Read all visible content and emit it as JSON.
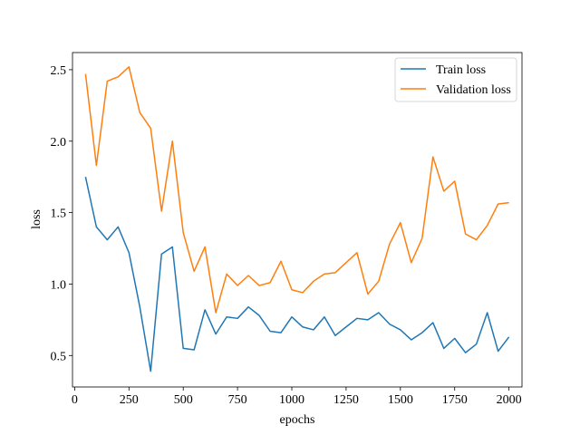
{
  "chart_data": {
    "type": "line",
    "xlabel": "epochs",
    "ylabel": "loss",
    "xlim": [
      -10,
      2060
    ],
    "ylim": [
      0.28,
      2.62
    ],
    "xticks": [
      0,
      250,
      500,
      750,
      1000,
      1250,
      1500,
      1750,
      2000
    ],
    "yticks": [
      0.5,
      1.0,
      1.5,
      2.0,
      2.5
    ],
    "xtick_labels": [
      "0",
      "250",
      "500",
      "750",
      "1000",
      "1250",
      "1500",
      "1750",
      "2000"
    ],
    "ytick_labels": [
      "0.5",
      "1.0",
      "1.5",
      "2.0",
      "2.5"
    ],
    "grid": false,
    "legend_position": "top-right",
    "x": [
      50,
      100,
      150,
      200,
      250,
      300,
      350,
      400,
      450,
      500,
      550,
      600,
      650,
      700,
      750,
      800,
      850,
      900,
      950,
      1000,
      1050,
      1100,
      1150,
      1200,
      1250,
      1300,
      1350,
      1400,
      1450,
      1500,
      1550,
      1600,
      1650,
      1700,
      1750,
      1800,
      1850,
      1900,
      1950,
      2000
    ],
    "series": [
      {
        "name": "Train loss",
        "color": "#1f77b4",
        "values": [
          1.75,
          1.4,
          1.31,
          1.4,
          1.22,
          0.84,
          0.39,
          1.21,
          1.26,
          0.55,
          0.54,
          0.82,
          0.65,
          0.77,
          0.76,
          0.84,
          0.78,
          0.67,
          0.66,
          0.77,
          0.7,
          0.68,
          0.77,
          0.64,
          0.7,
          0.76,
          0.75,
          0.8,
          0.72,
          0.68,
          0.61,
          0.66,
          0.73,
          0.55,
          0.62,
          0.52,
          0.58,
          0.8,
          0.53,
          0.63
        ]
      },
      {
        "name": "Validation loss",
        "color": "#ff7f0e",
        "values": [
          2.47,
          1.83,
          2.42,
          2.45,
          2.52,
          2.2,
          2.09,
          1.51,
          2.0,
          1.36,
          1.09,
          1.26,
          0.8,
          1.07,
          0.99,
          1.06,
          0.99,
          1.01,
          1.16,
          0.96,
          0.94,
          1.02,
          1.07,
          1.08,
          1.15,
          1.22,
          0.93,
          1.02,
          1.28,
          1.43,
          1.15,
          1.32,
          1.89,
          1.65,
          1.72,
          1.35,
          1.31,
          1.41,
          1.56,
          1.57
        ]
      }
    ]
  }
}
